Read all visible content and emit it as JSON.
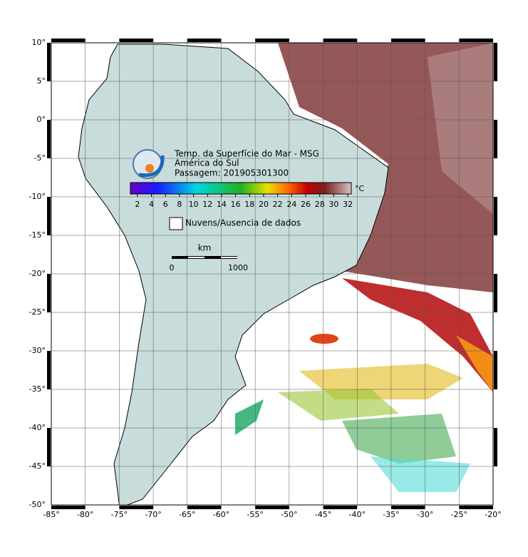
{
  "map": {
    "title": "Temp. da Superfície do Mar - MSG",
    "region": "América do Sul",
    "pass": "Passagem: 201905301300",
    "lonlim": [
      -85,
      -20
    ],
    "latlim": [
      -50,
      10
    ],
    "lon_ticks": [
      {
        "value": -85,
        "label": "-85°"
      },
      {
        "value": -80,
        "label": "-80°"
      },
      {
        "value": -75,
        "label": "-75°"
      },
      {
        "value": -70,
        "label": "-70°"
      },
      {
        "value": -65,
        "label": "-65°"
      },
      {
        "value": -60,
        "label": "-60°"
      },
      {
        "value": -55,
        "label": "-55°"
      },
      {
        "value": -50,
        "label": "-50°"
      },
      {
        "value": -45,
        "label": "-45°"
      },
      {
        "value": -40,
        "label": "-40°"
      },
      {
        "value": -35,
        "label": "-35°"
      },
      {
        "value": -30,
        "label": "-30°"
      },
      {
        "value": -25,
        "label": "-25°"
      },
      {
        "value": -20,
        "label": "-20°"
      }
    ],
    "lat_ticks": [
      {
        "value": 10,
        "label": "10°"
      },
      {
        "value": 5,
        "label": "5°"
      },
      {
        "value": 0,
        "label": "0°"
      },
      {
        "value": -5,
        "label": "-5°"
      },
      {
        "value": -10,
        "label": "-10°"
      },
      {
        "value": -15,
        "label": "-15°"
      },
      {
        "value": -20,
        "label": "-20°"
      },
      {
        "value": -25,
        "label": "-25°"
      },
      {
        "value": -30,
        "label": "-30°"
      },
      {
        "value": -35,
        "label": "-35°"
      },
      {
        "value": -40,
        "label": "-40°"
      },
      {
        "value": -45,
        "label": "-45°"
      },
      {
        "value": -50,
        "label": "-50°"
      }
    ],
    "colorbar": {
      "unit": "°C",
      "lim": [
        1,
        32.5
      ],
      "ticks": [
        2,
        4,
        6,
        8,
        10,
        12,
        14,
        16,
        18,
        20,
        22,
        24,
        26,
        28,
        30,
        32
      ]
    },
    "legend": "Nuvens/Ausencia de dados",
    "scale_bar": {
      "unit": "km",
      "labels": [
        0,
        1000
      ]
    }
  }
}
